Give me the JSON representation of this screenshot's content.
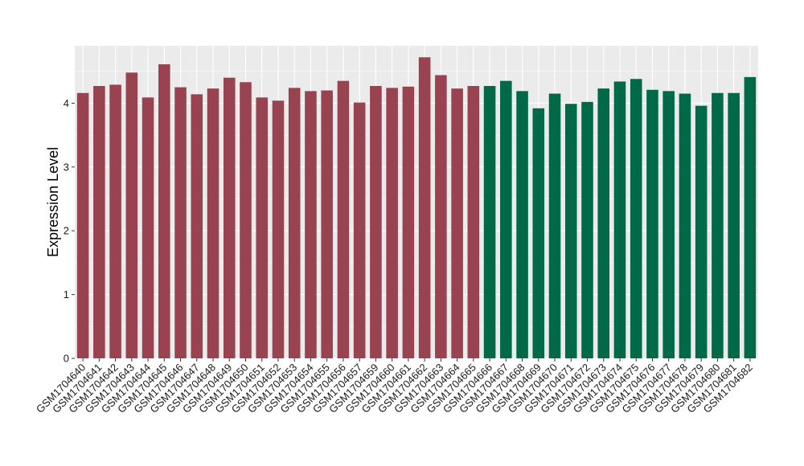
{
  "chart_data": {
    "type": "bar",
    "title": "",
    "xlabel": "",
    "ylabel": "Expression Level",
    "ylim": [
      0,
      4.9
    ],
    "yticks": [
      0,
      1,
      2,
      3,
      4
    ],
    "grid": true,
    "legend": "none",
    "panel_background": "#ebebeb",
    "gridline_color": "#ffffff",
    "group_colors": [
      "#9a4350",
      "#006a48"
    ],
    "categories": [
      "GSM1704640",
      "GSM1704641",
      "GSM1704642",
      "GSM1704643",
      "GSM1704644",
      "GSM1704645",
      "GSM1704646",
      "GSM1704647",
      "GSM1704648",
      "GSM1704649",
      "GSM1704650",
      "GSM1704651",
      "GSM1704652",
      "GSM1704653",
      "GSM1704654",
      "GSM1704655",
      "GSM1704656",
      "GSM1704657",
      "GSM1704659",
      "GSM1704660",
      "GSM1704661",
      "GSM1704662",
      "GSM1704663",
      "GSM1704664",
      "GSM1704665",
      "GSM1704666",
      "GSM1704667",
      "GSM1704668",
      "GSM1704669",
      "GSM1704670",
      "GSM1704671",
      "GSM1704672",
      "GSM1704673",
      "GSM1704674",
      "GSM1704675",
      "GSM1704676",
      "GSM1704677",
      "GSM1704678",
      "GSM1704679",
      "GSM1704680",
      "GSM1704681",
      "GSM1704682"
    ],
    "values": [
      4.16,
      4.27,
      4.29,
      4.48,
      4.09,
      4.61,
      4.25,
      4.14,
      4.23,
      4.4,
      4.33,
      4.09,
      4.04,
      4.24,
      4.19,
      4.2,
      4.35,
      4.01,
      4.27,
      4.24,
      4.26,
      4.72,
      4.44,
      4.23,
      4.27,
      4.27,
      4.35,
      4.19,
      3.92,
      4.15,
      3.99,
      4.02,
      4.23,
      4.34,
      4.38,
      4.21,
      4.19,
      4.15,
      3.96,
      4.16,
      4.16,
      4.41
    ],
    "groups": [
      0,
      0,
      0,
      0,
      0,
      0,
      0,
      0,
      0,
      0,
      0,
      0,
      0,
      0,
      0,
      0,
      0,
      0,
      0,
      0,
      0,
      0,
      0,
      0,
      0,
      1,
      1,
      1,
      1,
      1,
      1,
      1,
      1,
      1,
      1,
      1,
      1,
      1,
      1,
      1,
      1,
      1
    ]
  }
}
